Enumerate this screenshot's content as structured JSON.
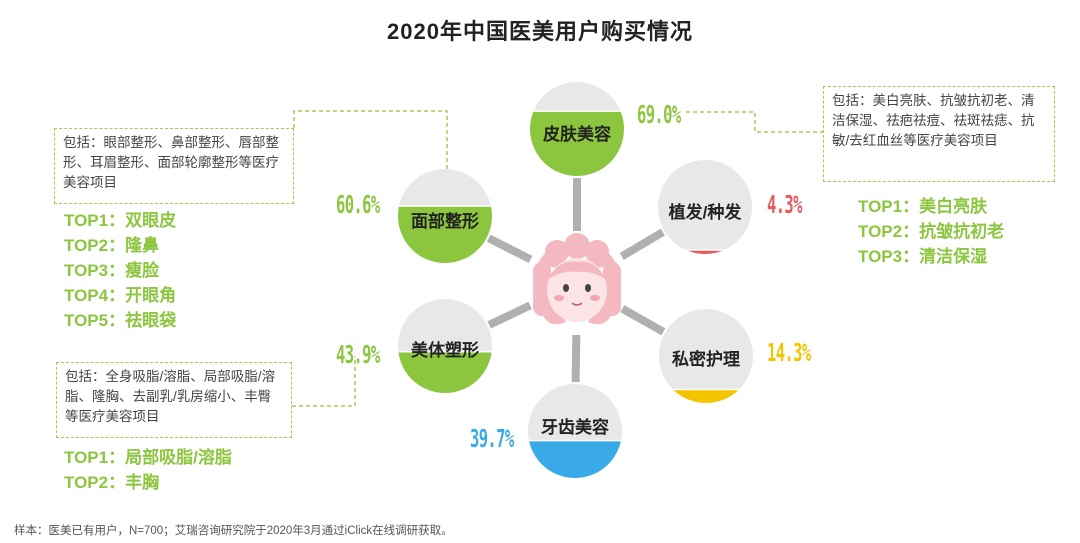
{
  "title": "2020年中国医美用户购买情况",
  "colors": {
    "green": "#8cc63f",
    "red": "#e9585a",
    "yellow": "#f5c400",
    "blue": "#3aa9e8",
    "bubble_grey": "#e8e8e8",
    "connector": "#b0b0b0",
    "face_pink": "#f3b8c0"
  },
  "icons": {
    "center": "girl-face-icon"
  },
  "chart_data": {
    "type": "bubble-fill",
    "unit": "%",
    "categories": [
      "皮肤美容",
      "植发/种发",
      "私密护理",
      "牙齿美容",
      "美体塑形",
      "面部整形"
    ],
    "values": [
      69.0,
      4.3,
      14.3,
      39.7,
      43.9,
      60.6
    ],
    "value_labels": [
      "69.0%",
      "4.3%",
      "14.3%",
      "39.7%",
      "43.9%",
      "60.6%"
    ],
    "series_colors": [
      "#8cc63f",
      "#e9585a",
      "#f5c400",
      "#3aa9e8",
      "#8cc63f",
      "#8cc63f"
    ],
    "ylim": [
      0,
      100
    ]
  },
  "notes": {
    "skin": "包括：美白亮肤、抗皱抗初老、清洁保湿、祛疤祛痘、祛斑祛痣、抗敏/去红血丝等医疗美容项目",
    "face": "包括：眼部整形、鼻部整形、唇部整形、耳眉整形、面部轮廓整形等医疗美容项目",
    "body": "包括：全身吸脂/溶脂、局部吸脂/溶脂、隆胸、去副乳/乳房缩小、丰臀等医疗美容项目"
  },
  "tops": {
    "face": [
      "TOP1：双眼皮",
      "TOP2：隆鼻",
      "TOP3：瘦脸",
      "TOP4：开眼角",
      "TOP5：祛眼袋"
    ],
    "skin": [
      "TOP1：美白亮肤",
      "TOP2：抗皱抗初老",
      "TOP3：清洁保湿"
    ],
    "body": [
      "TOP1：局部吸脂/溶脂",
      "TOP2：丰胸"
    ]
  },
  "footer": "样本：医美已有用户，N=700；艾瑞咨询研究院于2020年3月通过iClick在线调研获取。"
}
